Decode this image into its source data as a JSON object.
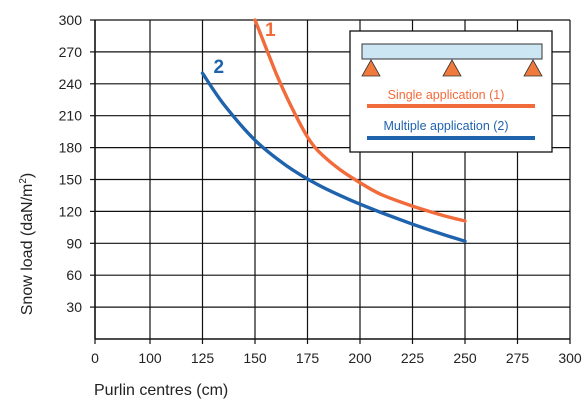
{
  "chart_data": {
    "type": "line",
    "xlabel": "Purlin centres (cm)",
    "ylabel": "Snow load",
    "ylabel_units": "(daN/m",
    "ylabel_sup": "2",
    "ylabel_close": ")",
    "xlim": [
      0,
      300
    ],
    "ylim": [
      0,
      300
    ],
    "x_ticks": [
      0,
      100,
      125,
      150,
      175,
      200,
      225,
      250,
      275,
      300
    ],
    "y_ticks": [
      30,
      60,
      90,
      120,
      150,
      180,
      210,
      240,
      270,
      300
    ],
    "grid": true,
    "legend_position": "top-right",
    "series": [
      {
        "name": "Single application (1)",
        "label": "1",
        "color": "#f26b3a",
        "x": [
          150,
          155,
          160,
          165,
          170,
          175,
          180,
          190,
          200,
          210,
          225,
          240,
          250
        ],
        "y": [
          300,
          275,
          250,
          228,
          208,
          190,
          177,
          160,
          147,
          136,
          125,
          116,
          111
        ]
      },
      {
        "name": "Multiple application (2)",
        "label": "2",
        "color": "#1f63ad",
        "x": [
          125,
          135,
          150,
          165,
          180,
          195,
          210,
          225,
          240,
          250
        ],
        "y": [
          250,
          221,
          187,
          163,
          145,
          131,
          119,
          108,
          98,
          92
        ]
      }
    ]
  },
  "colors": {
    "grid": "#111111",
    "beam_fill": "#cde6f4",
    "support_fill": "#f07a3c"
  }
}
